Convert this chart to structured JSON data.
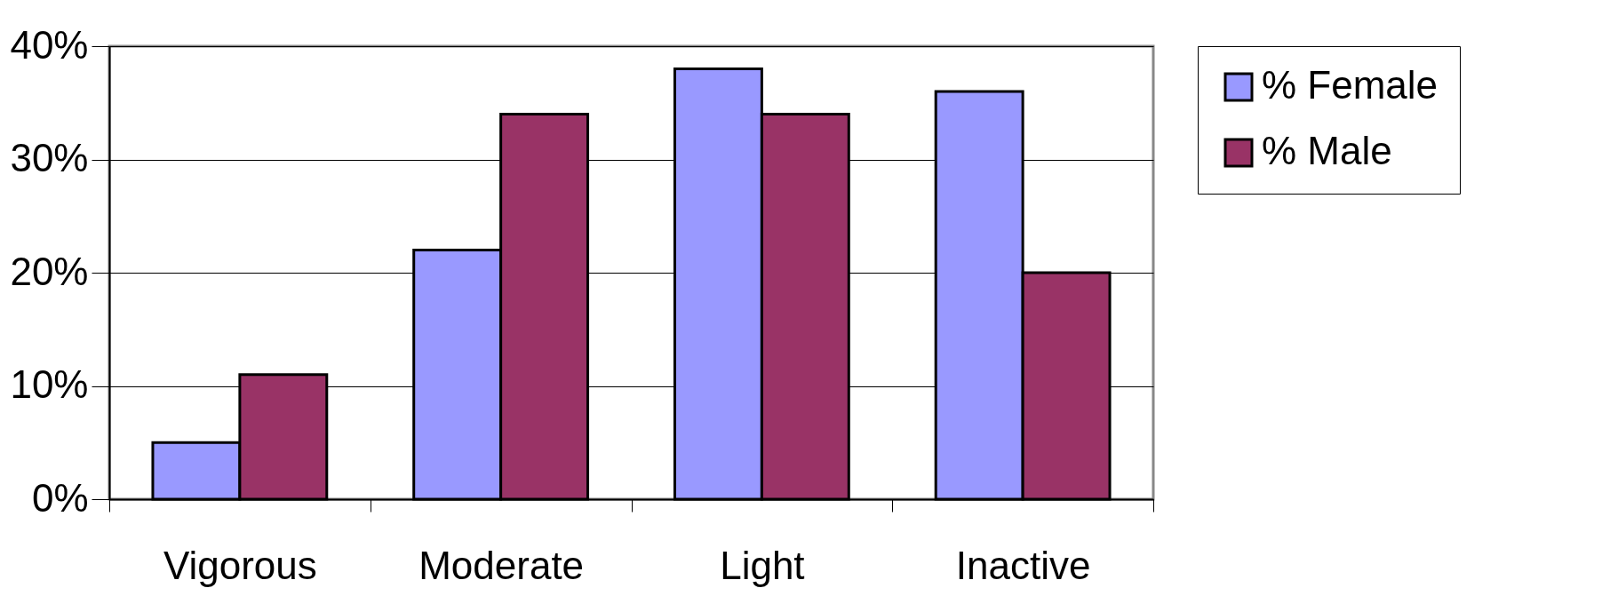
{
  "chart_data": {
    "type": "bar",
    "categories": [
      "Vigorous",
      "Moderate",
      "Light",
      "Inactive"
    ],
    "series": [
      {
        "name": "% Female",
        "color": "#9999ff",
        "values": [
          5,
          22,
          38,
          36
        ]
      },
      {
        "name": "% Male",
        "color": "#993366",
        "values": [
          11,
          34,
          34,
          20
        ]
      }
    ],
    "ylim": [
      0,
      40
    ],
    "yticks": [
      {
        "value": 0,
        "label": "0%"
      },
      {
        "value": 10,
        "label": "10%"
      },
      {
        "value": 20,
        "label": "20%"
      },
      {
        "value": 30,
        "label": "30%"
      },
      {
        "value": 40,
        "label": "40%"
      }
    ],
    "grid": "y",
    "legend": "right"
  }
}
